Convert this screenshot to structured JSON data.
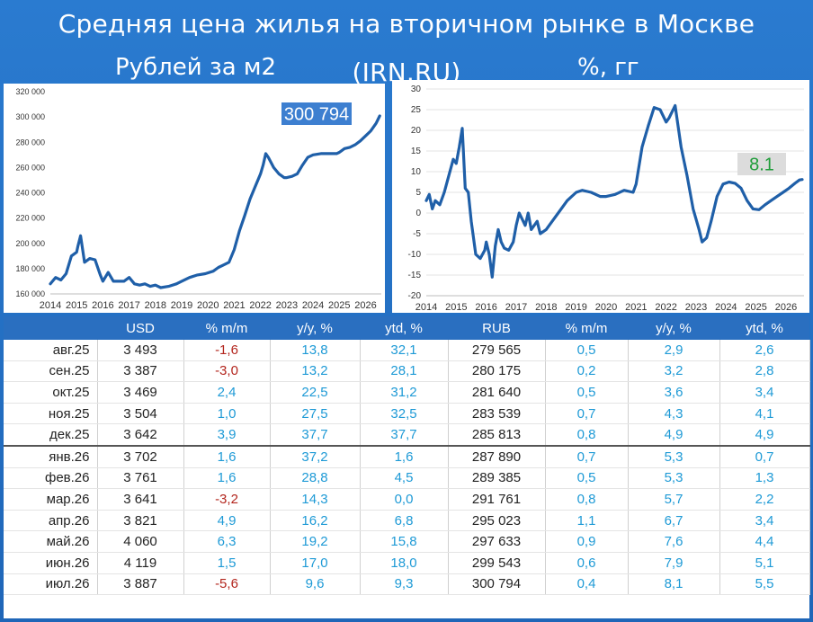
{
  "title": "Средняя цена жилья на вторичном рынке в Москве (IRN.RU)",
  "subtitle_left": "Рублей за м2",
  "subtitle_right": "%, гг",
  "colors": {
    "background": "#2a74c7",
    "line": "#1f5fa8",
    "callout_left": "#3d7fd0",
    "callout_right": "#dcdcdc",
    "callout_right_text": "#1f9d3a",
    "negative": "#b3261e",
    "percent": "#1e9ad6"
  },
  "chart_data": [
    {
      "type": "line",
      "title": "Рублей за м2",
      "xlabel": "",
      "ylabel": "",
      "x_ticks": [
        "2014",
        "2015",
        "2016",
        "2017",
        "2018",
        "2019",
        "2020",
        "2021",
        "2022",
        "2023",
        "2024",
        "2025",
        "2026"
      ],
      "xlim": [
        2014,
        2026.6
      ],
      "y_ticks": [
        "160 000",
        "180 000",
        "200 000",
        "220 000",
        "240 000",
        "260 000",
        "280 000",
        "300 000",
        "320 000"
      ],
      "ylim": [
        160000,
        320000
      ],
      "grid": false,
      "annotation": "300 794",
      "series": [
        {
          "x": [
            2014.0,
            2014.2,
            2014.4,
            2014.6,
            2014.8,
            2015.0,
            2015.05,
            2015.15,
            2015.3,
            2015.5,
            2015.7,
            2015.9,
            2016.0,
            2016.2,
            2016.4,
            2016.6,
            2016.8,
            2017.0,
            2017.2,
            2017.4,
            2017.6,
            2017.8,
            2018.0,
            2018.2,
            2018.5,
            2018.8,
            2019.0,
            2019.3,
            2019.6,
            2019.9,
            2020.2,
            2020.4,
            2020.6,
            2020.8,
            2021.0,
            2021.2,
            2021.4,
            2021.6,
            2021.8,
            2022.0,
            2022.1,
            2022.2,
            2022.3,
            2022.5,
            2022.7,
            2022.9,
            2023.0,
            2023.2,
            2023.4,
            2023.6,
            2023.8,
            2024.0,
            2024.3,
            2024.6,
            2024.9,
            2025.0,
            2025.2,
            2025.4,
            2025.6,
            2025.8,
            2026.0,
            2026.2,
            2026.4,
            2026.54
          ],
          "values": [
            168000,
            173000,
            171000,
            176000,
            190000,
            193000,
            198000,
            206000,
            185000,
            188000,
            187000,
            175000,
            170000,
            177000,
            170000,
            170000,
            170000,
            173000,
            168000,
            167000,
            168000,
            166000,
            167000,
            165000,
            166000,
            168000,
            170000,
            173000,
            175000,
            176000,
            178000,
            181000,
            183000,
            185000,
            195000,
            210000,
            222000,
            235000,
            245000,
            255000,
            262000,
            271000,
            268000,
            260000,
            255000,
            252000,
            252000,
            253000,
            255000,
            262000,
            268000,
            270000,
            271000,
            271000,
            271000,
            272000,
            275000,
            276000,
            278000,
            281000,
            285000,
            289000,
            295000,
            300794
          ]
        }
      ]
    },
    {
      "type": "line",
      "title": "%, гг",
      "xlabel": "",
      "ylabel": "",
      "x_ticks": [
        "2014",
        "2015",
        "2016",
        "2017",
        "2018",
        "2019",
        "2020",
        "2021",
        "2022",
        "2023",
        "2024",
        "2025",
        "2026"
      ],
      "xlim": [
        2014,
        2026.6
      ],
      "y_ticks": [
        "-20",
        "-15",
        "-10",
        "-5",
        "0",
        "5",
        "10",
        "15",
        "20",
        "25",
        "30"
      ],
      "ylim": [
        -20,
        30
      ],
      "grid": true,
      "annotation": "8.1",
      "series": [
        {
          "x": [
            2014.0,
            2014.1,
            2014.2,
            2014.3,
            2014.45,
            2014.6,
            2014.75,
            2014.9,
            2015.0,
            2015.1,
            2015.2,
            2015.3,
            2015.4,
            2015.5,
            2015.65,
            2015.8,
            2015.95,
            2016.0,
            2016.1,
            2016.2,
            2016.3,
            2016.4,
            2016.5,
            2016.6,
            2016.75,
            2016.9,
            2017.0,
            2017.1,
            2017.2,
            2017.3,
            2017.4,
            2017.5,
            2017.6,
            2017.7,
            2017.8,
            2018.0,
            2018.2,
            2018.4,
            2018.7,
            2019.0,
            2019.2,
            2019.5,
            2019.8,
            2020.0,
            2020.3,
            2020.6,
            2020.9,
            2021.0,
            2021.2,
            2021.4,
            2021.6,
            2021.8,
            2022.0,
            2022.1,
            2022.3,
            2022.5,
            2022.7,
            2022.9,
            2023.1,
            2023.2,
            2023.35,
            2023.5,
            2023.7,
            2023.9,
            2024.1,
            2024.3,
            2024.5,
            2024.7,
            2024.9,
            2025.1,
            2025.3,
            2025.5,
            2025.7,
            2025.9,
            2026.1,
            2026.3,
            2026.45,
            2026.54
          ],
          "values": [
            3,
            4.5,
            1,
            3,
            2,
            5,
            9,
            13,
            12,
            16,
            20.5,
            6,
            5,
            -2,
            -10,
            -11,
            -9,
            -7,
            -10,
            -15.5,
            -8,
            -4,
            -7,
            -8.5,
            -9,
            -7,
            -3,
            0,
            -1.5,
            -3,
            0,
            -4,
            -3,
            -2,
            -5,
            -4,
            -2,
            0,
            3,
            5,
            5.5,
            5,
            4,
            4,
            4.5,
            5.5,
            5,
            7,
            16,
            21,
            25.5,
            25,
            22,
            23,
            26,
            16,
            9,
            1,
            -4,
            -7,
            -6,
            -2,
            4,
            7,
            7.5,
            7.2,
            6,
            3,
            1,
            0.8,
            2,
            3,
            4,
            5,
            6,
            7.2,
            8,
            8.1
          ]
        }
      ]
    }
  ],
  "table": {
    "headers": [
      "",
      "USD",
      "% m/m",
      "y/y, %",
      "ytd, %",
      "RUB",
      "% m/m",
      "y/y, %",
      "ytd, %"
    ],
    "rows": [
      [
        "авг.25",
        "3 493",
        "-1,6",
        "13,8",
        "32,1",
        "279 565",
        "0,5",
        "2,9",
        "2,6"
      ],
      [
        "сен.25",
        "3 387",
        "-3,0",
        "13,2",
        "28,1",
        "280 175",
        "0,2",
        "3,2",
        "2,8"
      ],
      [
        "окт.25",
        "3 469",
        "2,4",
        "22,5",
        "31,2",
        "281 640",
        "0,5",
        "3,6",
        "3,4"
      ],
      [
        "ноя.25",
        "3 504",
        "1,0",
        "27,5",
        "32,5",
        "283 539",
        "0,7",
        "4,3",
        "4,1"
      ],
      [
        "дек.25",
        "3 642",
        "3,9",
        "37,7",
        "37,7",
        "285 813",
        "0,8",
        "4,9",
        "4,9"
      ],
      [
        "янв.26",
        "3 702",
        "1,6",
        "37,2",
        "1,6",
        "287 890",
        "0,7",
        "5,3",
        "0,7"
      ],
      [
        "фев.26",
        "3 761",
        "1,6",
        "28,8",
        "4,5",
        "289 385",
        "0,5",
        "5,3",
        "1,3"
      ],
      [
        "мар.26",
        "3 641",
        "-3,2",
        "14,3",
        "0,0",
        "291 761",
        "0,8",
        "5,7",
        "2,2"
      ],
      [
        "апр.26",
        "3 821",
        "4,9",
        "16,2",
        "6,8",
        "295 023",
        "1,1",
        "6,7",
        "3,4"
      ],
      [
        "май.26",
        "4 060",
        "6,3",
        "19,2",
        "15,8",
        "297 633",
        "0,9",
        "7,6",
        "4,4"
      ],
      [
        "июн.26",
        "4 119",
        "1,5",
        "17,0",
        "18,0",
        "299 543",
        "0,6",
        "7,9",
        "5,1"
      ],
      [
        "июл.26",
        "3 887",
        "-5,6",
        "9,6",
        "9,3",
        "300 794",
        "0,4",
        "8,1",
        "5,5"
      ]
    ]
  }
}
